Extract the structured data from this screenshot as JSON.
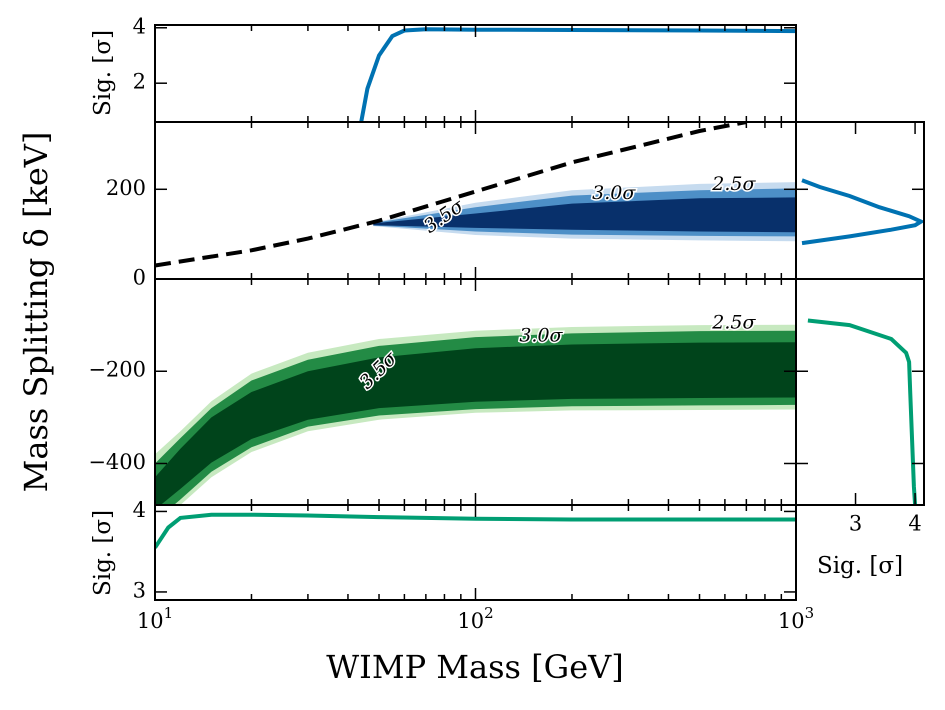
{
  "chart_data": {
    "type": "contour",
    "xlabel": "WIMP Mass [GeV]",
    "ylabel": "Mass Splitting δ [keV]",
    "xscale": "log",
    "xlim": [
      10,
      1000
    ],
    "x_ticks": [
      {
        "value": 10,
        "base": "10",
        "exp": "1"
      },
      {
        "value": 100,
        "base": "10",
        "exp": "2"
      },
      {
        "value": 1000,
        "base": "10",
        "exp": "3"
      }
    ],
    "upper_panel": {
      "ylim": [
        0,
        350
      ],
      "y_ticks": [
        0,
        200
      ],
      "boundary_curve": {
        "style": "dashed",
        "x": [
          10,
          20,
          30,
          50,
          100,
          200,
          500,
          700
        ],
        "y": [
          30,
          64,
          90,
          130,
          195,
          260,
          330,
          350
        ]
      },
      "confidence_regions": [
        {
          "level": "2.5σ",
          "x_min": 48,
          "x_max": 1000,
          "lower": [
            118,
            98,
            90,
            86,
            84
          ],
          "upper": [
            126,
            170,
            198,
            212,
            216
          ]
        },
        {
          "level": "3.0σ",
          "x_min": 48,
          "x_max": 1000,
          "lower": [
            119,
            106,
            99,
            96,
            95
          ],
          "upper": [
            125,
            160,
            186,
            198,
            202
          ]
        },
        {
          "level": "3.5σ",
          "x_min": 48,
          "x_max": 1000,
          "lower": [
            120,
            114,
            110,
            106,
            104
          ],
          "upper": [
            124,
            146,
            168,
            180,
            182
          ]
        }
      ],
      "region_x": [
        48,
        100,
        200,
        500,
        1000
      ],
      "labels": [
        {
          "text": "3.5σ",
          "x": 80,
          "y": 138
        },
        {
          "text": "3.0σ",
          "x": 270,
          "y": 190
        },
        {
          "text": "2.5σ",
          "x": 640,
          "y": 210
        }
      ]
    },
    "lower_panel": {
      "ylim": [
        -490,
        0
      ],
      "y_ticks": [
        -200,
        -400
      ],
      "region_x": [
        10,
        12,
        15,
        20,
        30,
        50,
        100,
        200,
        500,
        1000
      ],
      "confidence_regions": [
        {
          "level": "2.5σ",
          "lower": [
            -535,
            -490,
            -430,
            -375,
            -330,
            -305,
            -290,
            -285,
            -284,
            -283
          ],
          "upper": [
            -380,
            -330,
            -265,
            -205,
            -160,
            -130,
            -112,
            -104,
            -100,
            -99
          ]
        },
        {
          "level": "3.0σ",
          "lower": [
            -525,
            -478,
            -418,
            -365,
            -320,
            -296,
            -282,
            -276,
            -274,
            -273
          ],
          "upper": [
            -400,
            -345,
            -280,
            -220,
            -175,
            -145,
            -126,
            -118,
            -113,
            -112
          ]
        },
        {
          "level": "3.5σ",
          "lower": [
            -500,
            -455,
            -398,
            -347,
            -305,
            -280,
            -266,
            -260,
            -258,
            -257
          ],
          "upper": [
            -430,
            -368,
            -300,
            -245,
            -200,
            -170,
            -150,
            -142,
            -138,
            -137
          ]
        }
      ],
      "labels": [
        {
          "text": "3.5σ",
          "x": 50,
          "y": -200
        },
        {
          "text": "3.0σ",
          "x": 160,
          "y": -125
        },
        {
          "text": "2.5σ",
          "x": 640,
          "y": -96
        }
      ]
    },
    "top_significance": {
      "ylabel": "Sig. [σ]",
      "ylim": [
        0.6,
        4.1
      ],
      "y_ticks": [
        2,
        4
      ],
      "x": [
        44,
        46,
        50,
        55,
        60,
        70,
        100,
        200,
        500,
        1000
      ],
      "y": [
        0.6,
        1.8,
        3.0,
        3.7,
        3.9,
        3.95,
        3.93,
        3.92,
        3.9,
        3.88
      ]
    },
    "bottom_significance": {
      "ylabel": "Sig. [σ]",
      "ylim": [
        2.9,
        4.08
      ],
      "y_ticks": [
        3,
        4
      ],
      "x": [
        10,
        11,
        12,
        15,
        20,
        30,
        50,
        100,
        200,
        500,
        1000
      ],
      "y": [
        3.55,
        3.8,
        3.92,
        3.96,
        3.96,
        3.95,
        3.93,
        3.91,
        3.9,
        3.9,
        3.9
      ]
    },
    "right_upper_significance": {
      "delta": [
        80,
        95,
        110,
        120,
        128,
        140,
        160,
        185,
        205,
        220
      ],
      "sig": [
        2.1,
        2.9,
        3.6,
        4.0,
        4.1,
        3.9,
        3.4,
        2.9,
        2.4,
        2.1
      ]
    },
    "right_lower_significance": {
      "delta": [
        -90,
        -100,
        -130,
        -160,
        -180,
        -250,
        -350,
        -450,
        -490
      ],
      "sig": [
        2.2,
        2.9,
        3.6,
        3.85,
        3.9,
        3.92,
        3.95,
        3.98,
        4.0
      ]
    },
    "right_axis": {
      "xlabel": "Sig. [σ]",
      "xlim": [
        2.0,
        4.15
      ],
      "x_ticks": [
        3,
        4
      ]
    },
    "colors": {
      "blue_line": "#0072B2",
      "green_line": "#009E73",
      "blue_1": "#c6dbef",
      "blue_2": "#4d8fc7",
      "blue_3": "#08306b",
      "green_1": "#c7e9c0",
      "green_2": "#238b45",
      "green_3": "#00441b"
    }
  }
}
